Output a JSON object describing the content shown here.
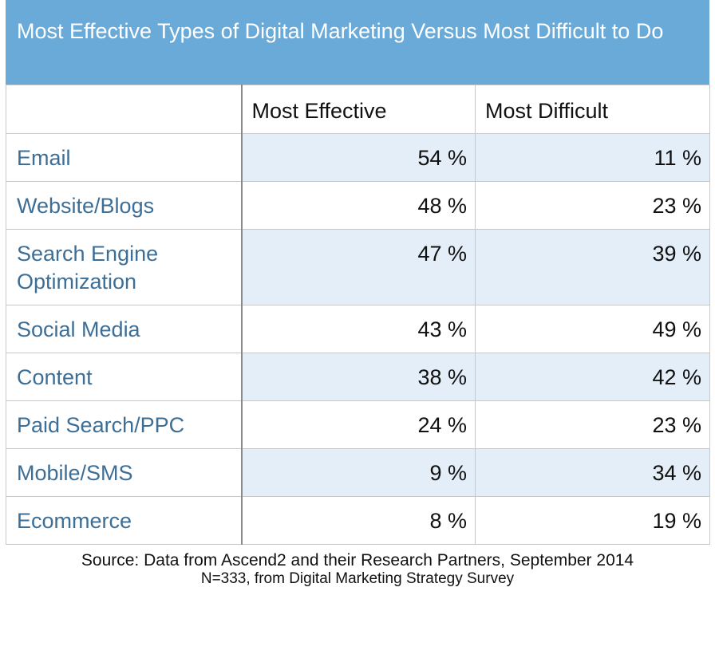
{
  "title": "Most Effective Types of Digital Marketing Versus Most Difficult to Do",
  "columns": [
    "",
    "Most Effective",
    "Most Difficult"
  ],
  "rows": [
    {
      "label": "Email",
      "effective": "54 %",
      "difficult": "11 %"
    },
    {
      "label": "Website/Blogs",
      "effective": "48 %",
      "difficult": "23 %"
    },
    {
      "label": "Search Engine Optimization",
      "effective": "47 %",
      "difficult": "39 %"
    },
    {
      "label": "Social Media",
      "effective": "43 %",
      "difficult": "49 %"
    },
    {
      "label": "Content",
      "effective": "38 %",
      "difficult": "42 %"
    },
    {
      "label": "Paid Search/PPC",
      "effective": "24 %",
      "difficult": "23 %"
    },
    {
      "label": "Mobile/SMS",
      "effective": "9 %",
      "difficult": "34 %"
    },
    {
      "label": "Ecommerce",
      "effective": "8 %",
      "difficult": "19 %"
    }
  ],
  "source_line1": "Source: Data from Ascend2 and their Research Partners, September 2014",
  "source_line2": "N=333, from Digital Marketing Strategy Survey",
  "colors": {
    "title_bg": "#6aaad9",
    "row_shade": "#e3eef8",
    "label_text": "#3d6e96"
  },
  "chart_data": {
    "type": "table",
    "title": "Most Effective Types of Digital Marketing Versus Most Difficult to Do",
    "columns": [
      "Most Effective",
      "Most Difficult"
    ],
    "categories": [
      "Email",
      "Website/Blogs",
      "Search Engine Optimization",
      "Social Media",
      "Content",
      "Paid Search/PPC",
      "Mobile/SMS",
      "Ecommerce"
    ],
    "series": [
      {
        "name": "Most Effective",
        "values": [
          54,
          48,
          47,
          43,
          38,
          24,
          9,
          8
        ]
      },
      {
        "name": "Most Difficult",
        "values": [
          11,
          23,
          39,
          49,
          42,
          23,
          34,
          19
        ]
      }
    ]
  }
}
